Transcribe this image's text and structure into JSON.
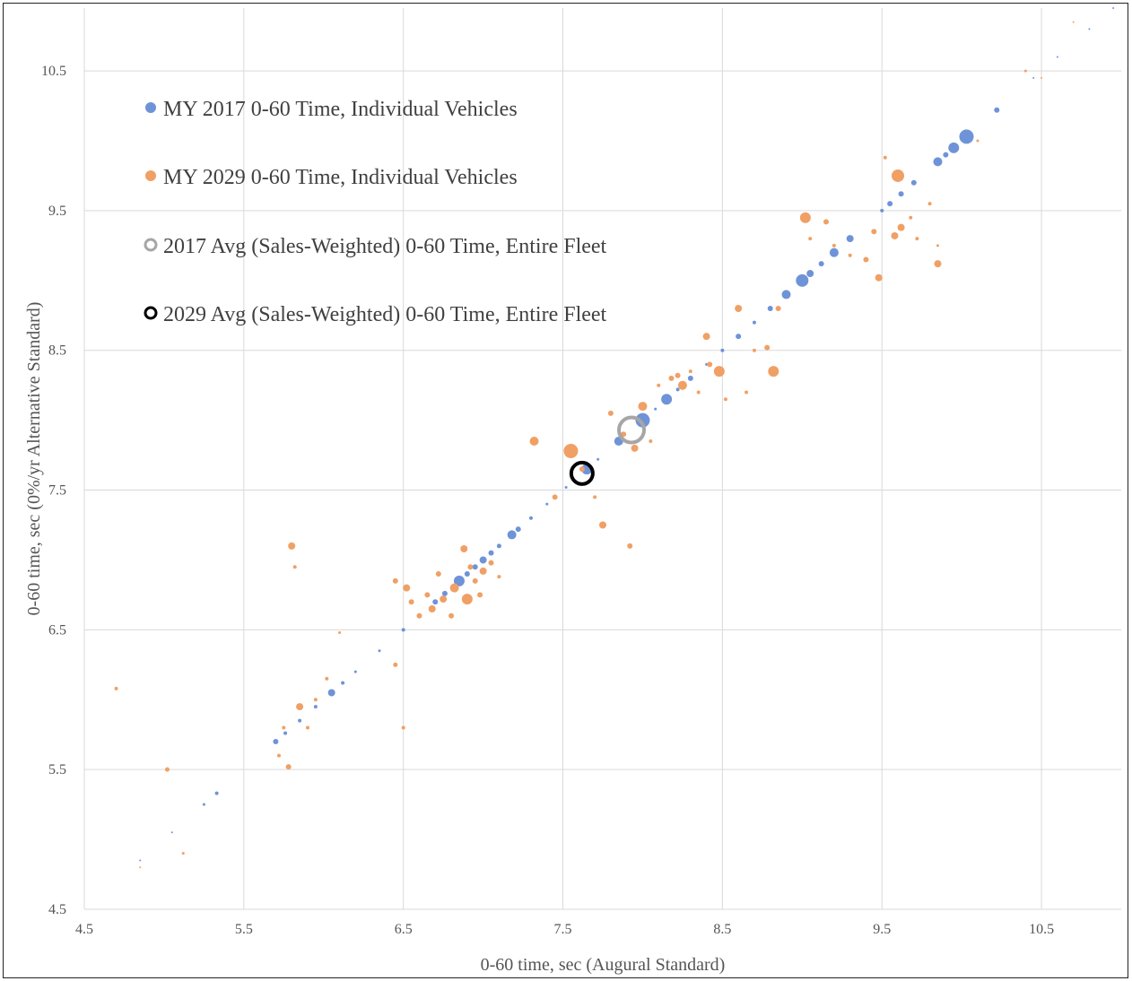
{
  "chart_data": {
    "type": "scatter",
    "xlabel": "0-60 time, sec (Augural Standard)",
    "ylabel": "0-60 time, sec (0%/yr Alternative Standard)",
    "xlim": [
      4.5,
      11.0
    ],
    "ylim": [
      4.5,
      10.95
    ],
    "xticks": [
      "4.5",
      "5.5",
      "6.5",
      "7.5",
      "8.5",
      "9.5",
      "10.5"
    ],
    "yticks": [
      "4.5",
      "5.5",
      "6.5",
      "7.5",
      "8.5",
      "9.5",
      "10.5"
    ],
    "grid": true,
    "legend_position": "top-left",
    "colors": {
      "my2017": "#6f93d8",
      "my2029": "#f0a065",
      "avg2017": "#a6a6a6",
      "avg2029": "#000000"
    },
    "series": [
      {
        "name": "MY 2017 0-60 Time, Individual Vehicles",
        "marker": "filled",
        "points": [
          [
            4.85,
            4.85,
            1
          ],
          [
            5.05,
            5.05,
            1
          ],
          [
            5.25,
            5.25,
            1.5
          ],
          [
            5.33,
            5.33,
            2
          ],
          [
            5.7,
            5.7,
            3
          ],
          [
            5.76,
            5.76,
            2
          ],
          [
            5.85,
            5.85,
            2
          ],
          [
            5.95,
            5.95,
            2
          ],
          [
            6.05,
            6.05,
            4
          ],
          [
            6.12,
            6.12,
            2
          ],
          [
            6.2,
            6.2,
            1.5
          ],
          [
            6.35,
            6.35,
            1.5
          ],
          [
            6.5,
            6.5,
            2
          ],
          [
            6.6,
            6.6,
            2
          ],
          [
            6.7,
            6.7,
            3
          ],
          [
            6.76,
            6.76,
            3
          ],
          [
            6.85,
            6.85,
            6
          ],
          [
            6.9,
            6.9,
            3
          ],
          [
            6.95,
            6.95,
            3
          ],
          [
            7.0,
            7.0,
            4
          ],
          [
            7.05,
            7.05,
            3
          ],
          [
            7.1,
            7.1,
            2.5
          ],
          [
            7.18,
            7.18,
            5
          ],
          [
            7.22,
            7.22,
            3
          ],
          [
            7.3,
            7.3,
            2
          ],
          [
            7.4,
            7.4,
            1.5
          ],
          [
            7.52,
            7.52,
            1.5
          ],
          [
            7.65,
            7.65,
            6
          ],
          [
            7.72,
            7.72,
            1.5
          ],
          [
            7.85,
            7.85,
            5
          ],
          [
            8.0,
            8.0,
            8
          ],
          [
            8.08,
            8.08,
            1.5
          ],
          [
            8.15,
            8.15,
            6
          ],
          [
            8.22,
            8.22,
            2
          ],
          [
            8.3,
            8.3,
            3
          ],
          [
            8.4,
            8.4,
            1.5
          ],
          [
            8.5,
            8.5,
            2
          ],
          [
            8.6,
            8.6,
            3
          ],
          [
            8.7,
            8.7,
            2
          ],
          [
            8.8,
            8.8,
            3
          ],
          [
            8.9,
            8.9,
            5
          ],
          [
            9.0,
            9.0,
            7
          ],
          [
            9.05,
            9.05,
            4
          ],
          [
            9.12,
            9.12,
            3
          ],
          [
            9.2,
            9.2,
            5
          ],
          [
            9.3,
            9.3,
            4
          ],
          [
            9.5,
            9.5,
            2
          ],
          [
            9.55,
            9.55,
            3
          ],
          [
            9.62,
            9.62,
            3
          ],
          [
            9.7,
            9.7,
            3
          ],
          [
            9.85,
            9.85,
            5
          ],
          [
            9.9,
            9.9,
            3
          ],
          [
            9.95,
            9.95,
            6
          ],
          [
            10.03,
            10.03,
            8
          ],
          [
            10.22,
            10.22,
            3
          ],
          [
            10.45,
            10.45,
            1
          ],
          [
            10.6,
            10.6,
            1
          ],
          [
            10.8,
            10.8,
            1
          ],
          [
            10.95,
            10.95,
            1
          ]
        ]
      },
      {
        "name": "MY 2029 0-60 Time, Individual Vehicles",
        "marker": "filled",
        "points": [
          [
            4.7,
            6.08,
            2
          ],
          [
            4.85,
            4.8,
            1
          ],
          [
            5.02,
            5.5,
            2.5
          ],
          [
            5.12,
            4.9,
            1.5
          ],
          [
            5.72,
            5.6,
            2
          ],
          [
            5.75,
            5.8,
            2
          ],
          [
            5.78,
            5.52,
            3
          ],
          [
            5.8,
            7.1,
            4
          ],
          [
            5.82,
            6.95,
            2
          ],
          [
            5.85,
            5.95,
            4
          ],
          [
            5.9,
            5.8,
            2
          ],
          [
            5.95,
            6.0,
            2
          ],
          [
            6.02,
            6.15,
            2
          ],
          [
            6.1,
            6.48,
            1.5
          ],
          [
            6.45,
            6.85,
            3
          ],
          [
            6.45,
            6.25,
            2.5
          ],
          [
            6.5,
            5.8,
            2
          ],
          [
            6.52,
            6.8,
            4
          ],
          [
            6.55,
            6.7,
            3
          ],
          [
            6.6,
            6.6,
            3
          ],
          [
            6.65,
            6.75,
            3
          ],
          [
            6.68,
            6.65,
            4
          ],
          [
            6.72,
            6.9,
            3
          ],
          [
            6.75,
            6.72,
            4
          ],
          [
            6.8,
            6.6,
            3
          ],
          [
            6.82,
            6.8,
            5
          ],
          [
            6.88,
            7.08,
            4
          ],
          [
            6.9,
            6.72,
            6
          ],
          [
            6.92,
            6.95,
            3
          ],
          [
            6.95,
            6.85,
            3
          ],
          [
            6.98,
            6.75,
            3
          ],
          [
            7.0,
            6.92,
            4
          ],
          [
            7.05,
            6.98,
            3
          ],
          [
            7.1,
            6.88,
            2
          ],
          [
            7.32,
            7.85,
            5
          ],
          [
            7.45,
            7.45,
            3
          ],
          [
            7.55,
            7.78,
            8
          ],
          [
            7.62,
            7.65,
            3
          ],
          [
            7.7,
            7.45,
            2
          ],
          [
            7.75,
            7.25,
            4
          ],
          [
            7.8,
            8.05,
            3
          ],
          [
            7.88,
            7.9,
            3
          ],
          [
            7.92,
            7.1,
            3
          ],
          [
            7.95,
            7.8,
            4
          ],
          [
            8.0,
            8.1,
            5
          ],
          [
            8.05,
            7.85,
            2
          ],
          [
            8.1,
            8.25,
            2
          ],
          [
            8.18,
            8.3,
            3
          ],
          [
            8.22,
            8.32,
            3
          ],
          [
            8.25,
            8.25,
            5
          ],
          [
            8.3,
            8.35,
            2
          ],
          [
            8.35,
            8.2,
            2
          ],
          [
            8.4,
            8.6,
            4
          ],
          [
            8.42,
            8.4,
            3
          ],
          [
            8.48,
            8.35,
            6
          ],
          [
            8.52,
            8.15,
            2
          ],
          [
            8.6,
            8.8,
            4
          ],
          [
            8.65,
            8.2,
            2
          ],
          [
            8.7,
            8.5,
            2
          ],
          [
            8.78,
            8.52,
            3
          ],
          [
            8.82,
            8.35,
            6
          ],
          [
            8.85,
            8.8,
            3
          ],
          [
            9.02,
            9.45,
            6
          ],
          [
            9.05,
            9.3,
            2
          ],
          [
            9.15,
            9.42,
            3
          ],
          [
            9.2,
            9.25,
            2
          ],
          [
            9.3,
            9.18,
            2
          ],
          [
            9.4,
            9.15,
            3
          ],
          [
            9.45,
            9.35,
            3
          ],
          [
            9.48,
            9.02,
            4
          ],
          [
            9.52,
            9.88,
            2
          ],
          [
            9.58,
            9.32,
            4
          ],
          [
            9.6,
            9.75,
            7
          ],
          [
            9.62,
            9.38,
            4
          ],
          [
            9.68,
            9.45,
            2
          ],
          [
            9.72,
            9.3,
            2
          ],
          [
            9.8,
            9.55,
            2
          ],
          [
            9.85,
            9.12,
            4
          ],
          [
            9.85,
            9.25,
            1.5
          ],
          [
            10.1,
            10.0,
            1.5
          ],
          [
            10.4,
            10.5,
            1.5
          ],
          [
            10.5,
            10.45,
            1
          ],
          [
            10.7,
            10.85,
            1
          ]
        ]
      },
      {
        "name": "2017 Avg (Sales-Weighted) 0-60 Time, Entire Fleet",
        "marker": "hollow",
        "points": [
          [
            7.93,
            7.93,
            14
          ]
        ]
      },
      {
        "name": "2029 Avg (Sales-Weighted) 0-60 Time, Entire Fleet",
        "marker": "hollow",
        "points": [
          [
            7.62,
            7.62,
            12
          ]
        ]
      }
    ]
  }
}
